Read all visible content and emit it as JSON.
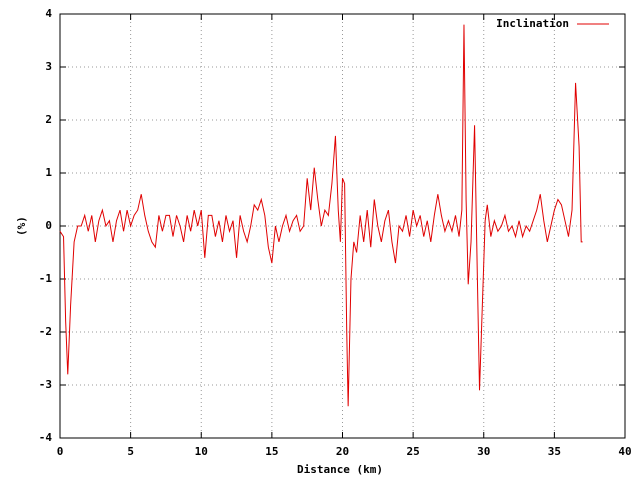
{
  "chart_data": {
    "type": "line",
    "xlabel": "Distance (km)",
    "ylabel": "(%)",
    "xlim": [
      0,
      40
    ],
    "xticks": [
      0,
      5,
      10,
      15,
      20,
      25,
      30,
      35,
      40
    ],
    "ylim": [
      -4,
      4
    ],
    "yticks": [
      -4,
      -3,
      -2,
      -1,
      0,
      1,
      2,
      3,
      4
    ],
    "grid": true,
    "legend": "top-right",
    "x": [
      0,
      0.25,
      0.4,
      0.55,
      0.75,
      1.0,
      1.25,
      1.5,
      1.75,
      2.0,
      2.25,
      2.5,
      2.75,
      3.0,
      3.25,
      3.5,
      3.75,
      4.0,
      4.25,
      4.5,
      4.75,
      5.0,
      5.25,
      5.5,
      5.75,
      6.0,
      6.25,
      6.5,
      6.75,
      7.0,
      7.25,
      7.5,
      7.75,
      8.0,
      8.25,
      8.5,
      8.75,
      9.0,
      9.25,
      9.5,
      9.75,
      10.0,
      10.25,
      10.5,
      10.75,
      11.0,
      11.25,
      11.5,
      11.75,
      12.0,
      12.25,
      12.5,
      12.75,
      13.0,
      13.25,
      13.5,
      13.75,
      14.0,
      14.25,
      14.5,
      14.75,
      15.0,
      15.25,
      15.5,
      15.75,
      16.0,
      16.25,
      16.5,
      16.75,
      17.0,
      17.25,
      17.5,
      17.75,
      18.0,
      18.25,
      18.5,
      18.75,
      19.0,
      19.25,
      19.5,
      19.7,
      19.85,
      20.0,
      20.15,
      20.3,
      20.4,
      20.6,
      20.8,
      21.0,
      21.25,
      21.5,
      21.75,
      22.0,
      22.25,
      22.5,
      22.75,
      23.0,
      23.25,
      23.5,
      23.75,
      24.0,
      24.25,
      24.5,
      24.75,
      25.0,
      25.25,
      25.5,
      25.75,
      26.0,
      26.25,
      26.5,
      26.75,
      27.0,
      27.25,
      27.5,
      27.75,
      28.0,
      28.25,
      28.45,
      28.6,
      28.75,
      28.9,
      29.1,
      29.35,
      29.55,
      29.7,
      29.9,
      30.1,
      30.25,
      30.5,
      30.75,
      31.0,
      31.25,
      31.5,
      31.75,
      32.0,
      32.25,
      32.5,
      32.75,
      33.0,
      33.25,
      33.5,
      33.75,
      34.0,
      34.25,
      34.5,
      34.75,
      35.0,
      35.25,
      35.5,
      35.75,
      36.0,
      36.25,
      36.5,
      36.75,
      36.9,
      37.0
    ],
    "series": [
      {
        "name": "Inclination",
        "color": "#e00000",
        "values": [
          -0.1,
          -0.2,
          -1.8,
          -2.8,
          -1.5,
          -0.3,
          0.0,
          0.0,
          0.2,
          -0.1,
          0.2,
          -0.3,
          0.1,
          0.3,
          0.0,
          0.1,
          -0.3,
          0.1,
          0.3,
          -0.1,
          0.3,
          0.0,
          0.2,
          0.3,
          0.6,
          0.2,
          -0.1,
          -0.3,
          -0.4,
          0.2,
          -0.1,
          0.2,
          0.2,
          -0.2,
          0.2,
          0.0,
          -0.3,
          0.2,
          -0.1,
          0.3,
          0.0,
          0.3,
          -0.6,
          0.2,
          0.2,
          -0.2,
          0.1,
          -0.3,
          0.2,
          -0.1,
          0.1,
          -0.6,
          0.2,
          -0.1,
          -0.3,
          0.0,
          0.4,
          0.3,
          0.5,
          0.2,
          -0.4,
          -0.7,
          0.0,
          -0.3,
          0.0,
          0.2,
          -0.1,
          0.1,
          0.2,
          -0.1,
          0.0,
          0.9,
          0.3,
          1.1,
          0.5,
          0.0,
          0.3,
          0.2,
          0.8,
          1.7,
          0.3,
          -0.3,
          0.9,
          0.8,
          -2.0,
          -3.4,
          -1.0,
          -0.3,
          -0.5,
          0.2,
          -0.3,
          0.3,
          -0.4,
          0.5,
          0.0,
          -0.3,
          0.1,
          0.3,
          -0.3,
          -0.7,
          0.0,
          -0.1,
          0.2,
          -0.2,
          0.3,
          0.0,
          0.2,
          -0.2,
          0.1,
          -0.3,
          0.2,
          0.6,
          0.2,
          -0.1,
          0.1,
          -0.1,
          0.2,
          -0.2,
          0.3,
          3.8,
          0.5,
          -1.1,
          -0.3,
          1.9,
          -1.0,
          -3.1,
          -1.5,
          0.1,
          0.4,
          -0.2,
          0.1,
          -0.1,
          0.0,
          0.2,
          -0.1,
          0.0,
          -0.2,
          0.1,
          -0.2,
          0.0,
          -0.1,
          0.1,
          0.3,
          0.6,
          0.1,
          -0.3,
          0.0,
          0.3,
          0.5,
          0.4,
          0.1,
          -0.2,
          0.3,
          2.7,
          1.5,
          -0.3,
          -0.3
        ]
      }
    ]
  }
}
